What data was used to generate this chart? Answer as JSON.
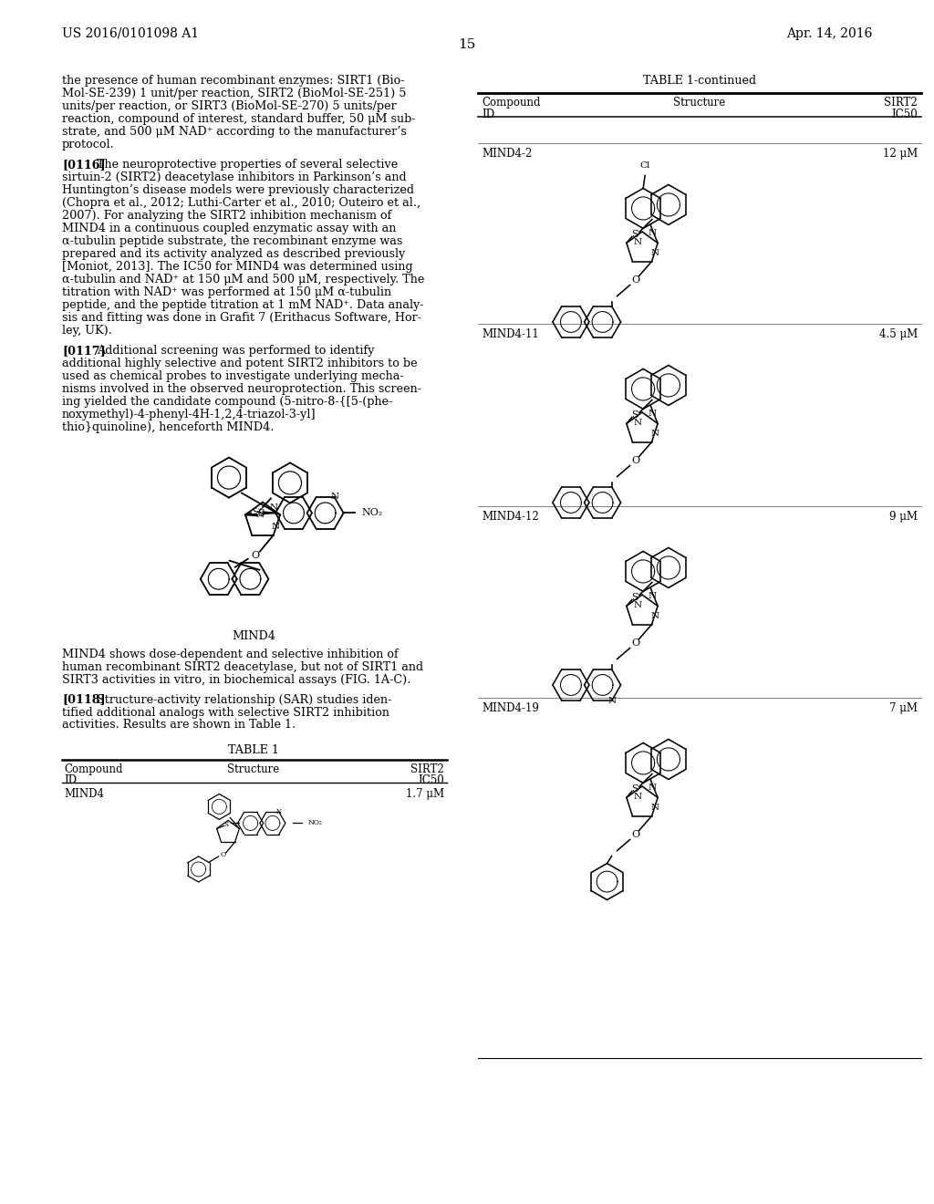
{
  "bg_color": "#ffffff",
  "header_left": "US 2016/0101098 A1",
  "header_right": "Apr. 14, 2016",
  "page_number": "15",
  "para0": "the presence of human recombinant enzymes: SIRT1 (Bio-\nMol-SE-239) 1 unit/per reaction, SIRT2 (BioMol-SE-251) 5\nunits/per reaction, or SIRT3 (BioMol-SE-270) 5 units/per\nreaction, compound of interest, standard buffer, 50 μM sub-\nstrate, and 500 μM NAD⁺ according to the manufacturer’s\nprotocol.",
  "para116_prefix": "[0116]",
  "para116": "The neuroprotective properties of several selective\nsirtuin-2 (SIRT2) deacetylase inhibitors in Parkinson’s and\nHuntington’s disease models were previously characterized\n(Chopra et al., 2012; Luthi-Carter et al., 2010; Outeiro et al.,\n2007). For analyzing the SIRT2 inhibition mechanism of\nMIND4 in a continuous coupled enzymatic assay with an\nα-tubulin peptide substrate, the recombinant enzyme was\nprepared and its activity analyzed as described previously\n[Moniot, 2013]. The IC50 for MIND4 was determined using\nα-tubulin and NAD⁺ at 150 μM and 500 μM, respectively. The\ntitration with NAD⁺ was performed at 150 μM α-tubulin\npeptide, and the peptide titration at 1 mM NAD⁺. Data analy-\nsis and fitting was done in Grafit 7 (Erithacus Software, Hor-\nley, UK).",
  "para117_prefix": "[0117]",
  "para117": "Additional screening was performed to identify\nadditional highly selective and potent SIRT2 inhibitors to be\nused as chemical probes to investigate underlying mecha-\nnisms involved in the observed neuroprotection. This screen-\ning yielded the candidate compound (5-nitro-8-{[5-(phe-\nnoxymethyl)-4-phenyl-4H-1,2,4-triazol-3-yl]\nthio}quinoline), henceforth MIND4.",
  "para_mind4a": "MIND4 shows dose-dependent and selective inhibition of\nhuman recombinant SIRT2 deacetylase, but not of SIRT1 and\nSIRT3 activities in vitro, in biochemical assays (FIG. 1A-C).",
  "para118_prefix": "[0118]",
  "para118": "Structure-activity relationship (SAR) studies iden-\ntified additional analogs with selective SIRT2 inhibition\nactivities. Results are shown in Table 1.",
  "table1_title": "TABLE 1",
  "table1_continued_title": "TABLE 1-continued",
  "rows_right": [
    {
      "id": "MIND4-2",
      "ic50": "12 μM",
      "type": "naphthyloxy_cl"
    },
    {
      "id": "MIND4-11",
      "ic50": "4.5 μM",
      "type": "naphthyloxy"
    },
    {
      "id": "MIND4-12",
      "ic50": "9 μM",
      "type": "isoquinolinyloxy"
    },
    {
      "id": "MIND4-19",
      "ic50": "7 μM",
      "type": "phenoxy"
    }
  ]
}
